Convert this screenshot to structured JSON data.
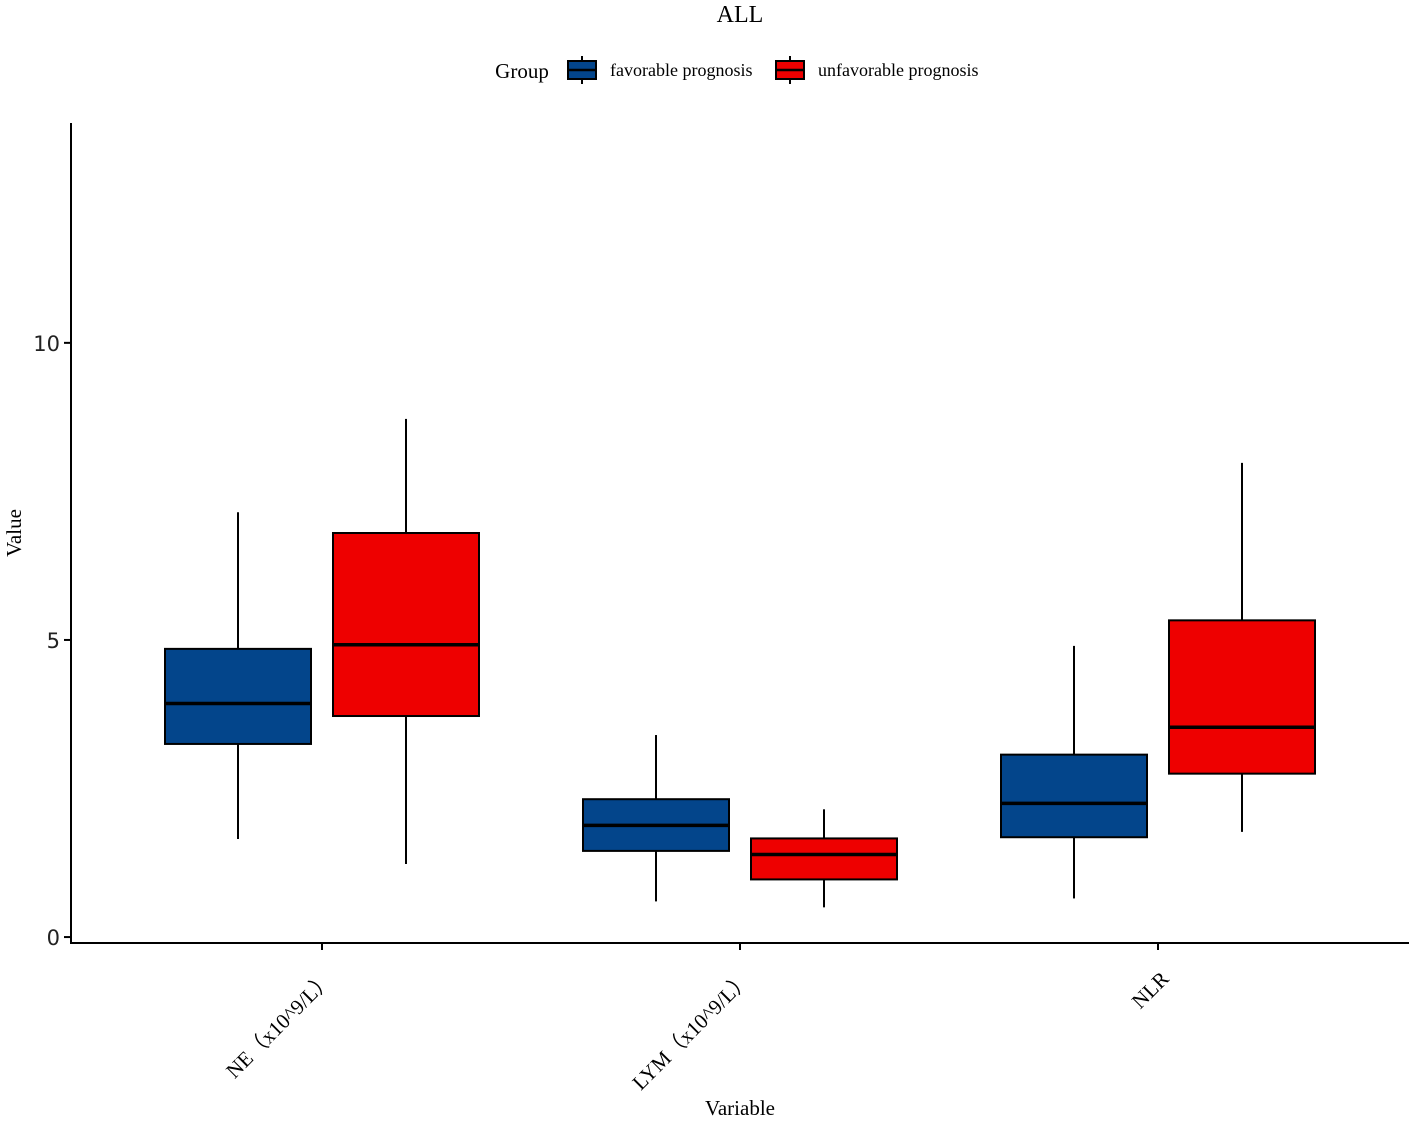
{
  "chart_data": {
    "type": "box",
    "title": "ALL",
    "xlabel": "Variable",
    "ylabel": "Value",
    "ylim": [
      -0.1,
      13.7
    ],
    "yticks": [
      0,
      5,
      10
    ],
    "categories": [
      "NE（x10^9/L）",
      "LYM（x10^9/L）",
      "NLR"
    ],
    "legend": {
      "title": "Group",
      "position": "top",
      "entries": [
        "favorable prognosis",
        "unfavorable prognosis"
      ]
    },
    "series": [
      {
        "name": "favorable prognosis",
        "color": "#03458B",
        "boxes": [
          {
            "whisker_low": 1.65,
            "q1": 3.25,
            "median": 3.93,
            "q3": 4.85,
            "whisker_high": 7.15
          },
          {
            "whisker_low": 0.6,
            "q1": 1.45,
            "median": 1.88,
            "q3": 2.32,
            "whisker_high": 3.4
          },
          {
            "whisker_low": 0.65,
            "q1": 1.68,
            "median": 2.25,
            "q3": 3.07,
            "whisker_high": 4.9
          }
        ]
      },
      {
        "name": "unfavorable prognosis",
        "color": "#EE0000",
        "boxes": [
          {
            "whisker_low": 1.23,
            "q1": 3.72,
            "median": 4.92,
            "q3": 6.8,
            "whisker_high": 8.72
          },
          {
            "whisker_low": 0.5,
            "q1": 0.97,
            "median": 1.39,
            "q3": 1.66,
            "whisker_high": 2.15
          },
          {
            "whisker_low": 1.77,
            "q1": 2.75,
            "median": 3.53,
            "q3": 5.33,
            "whisker_high": 7.98
          }
        ]
      }
    ]
  }
}
